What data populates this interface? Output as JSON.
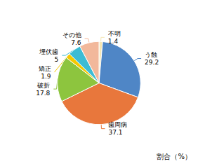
{
  "chart_data": {
    "type": "pie",
    "subtitle": "割合（%）",
    "categories": [
      "不明",
      "う蝕",
      "歯周病",
      "破折",
      "矯正",
      "埋伏歯",
      "その他"
    ],
    "values": [
      1.4,
      29.2,
      37.1,
      17.8,
      1.9,
      5.0,
      7.6
    ],
    "colors": [
      "#f5e6b4",
      "#4f86c6",
      "#e8773c",
      "#8dc53e",
      "#f5c800",
      "#3dbcd4",
      "#f2b89b"
    ],
    "data_labels": true
  }
}
